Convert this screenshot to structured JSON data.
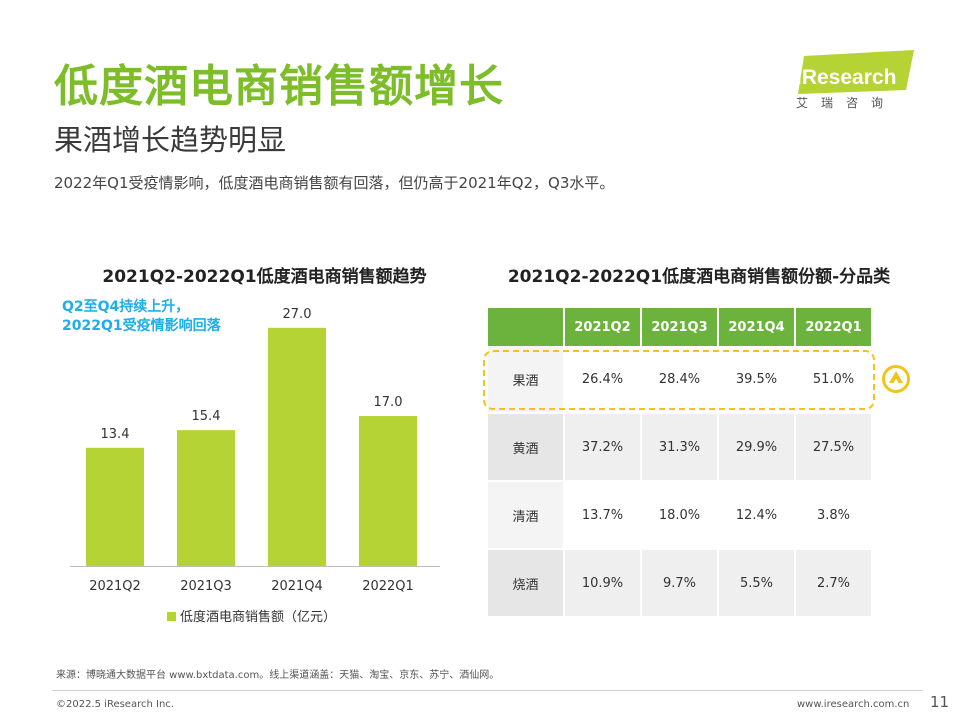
{
  "header": {
    "title": "低度酒电商销售额增长",
    "subtitle": "果酒增长趋势明显",
    "summary": "2022年Q1受疫情影响，低度酒电商销售额有回落，但仍高于2021年Q2，Q3水平。"
  },
  "logo": {
    "name": "iResearch",
    "cn": "艾瑞咨询",
    "accent": "#b5d334"
  },
  "chart_data": {
    "type": "bar",
    "title": "2021Q2-2022Q1低度酒电商销售额趋势",
    "annotation": [
      "Q2至Q4持续上升，",
      "2022Q1受疫情影响回落"
    ],
    "categories": [
      "2021Q2",
      "2021Q3",
      "2021Q4",
      "2022Q1"
    ],
    "series": [
      {
        "name": "低度酒电商销售额（亿元）",
        "values": [
          13.4,
          15.4,
          27.0,
          17.0
        ],
        "labels": [
          "13.4",
          "15.4",
          "27.0",
          "17.0"
        ]
      }
    ],
    "ylim": [
      0,
      30
    ],
    "grid": false,
    "legend": "bottom",
    "bar_color": "#b5d334"
  },
  "table": {
    "title": "2021Q2-2022Q1低度酒电商销售额份额-分品类",
    "headers": [
      "",
      "2021Q2",
      "2021Q3",
      "2021Q4",
      "2022Q1"
    ],
    "rows": [
      {
        "category": "果酒",
        "values": [
          "26.4%",
          "28.4%",
          "39.5%",
          "51.0%"
        ]
      },
      {
        "category": "黄酒",
        "values": [
          "37.2%",
          "31.3%",
          "29.9%",
          "27.5%"
        ]
      },
      {
        "category": "清酒",
        "values": [
          "13.7%",
          "18.0%",
          "12.4%",
          "3.8%"
        ]
      },
      {
        "category": "烧酒",
        "values": [
          "10.9%",
          "9.7%",
          "5.5%",
          "2.7%"
        ]
      }
    ],
    "header_color": "#6cb33e",
    "highlight_color": "#f0c419"
  },
  "footer": {
    "source": "来源：博晓通大数据平台 www.bxtdata.com。线上渠道涵盖：天猫、淘宝、京东、苏宁、酒仙网。",
    "copyright": "©2022.5 iResearch Inc.",
    "site": "www.iresearch.com.cn",
    "page": "11"
  }
}
